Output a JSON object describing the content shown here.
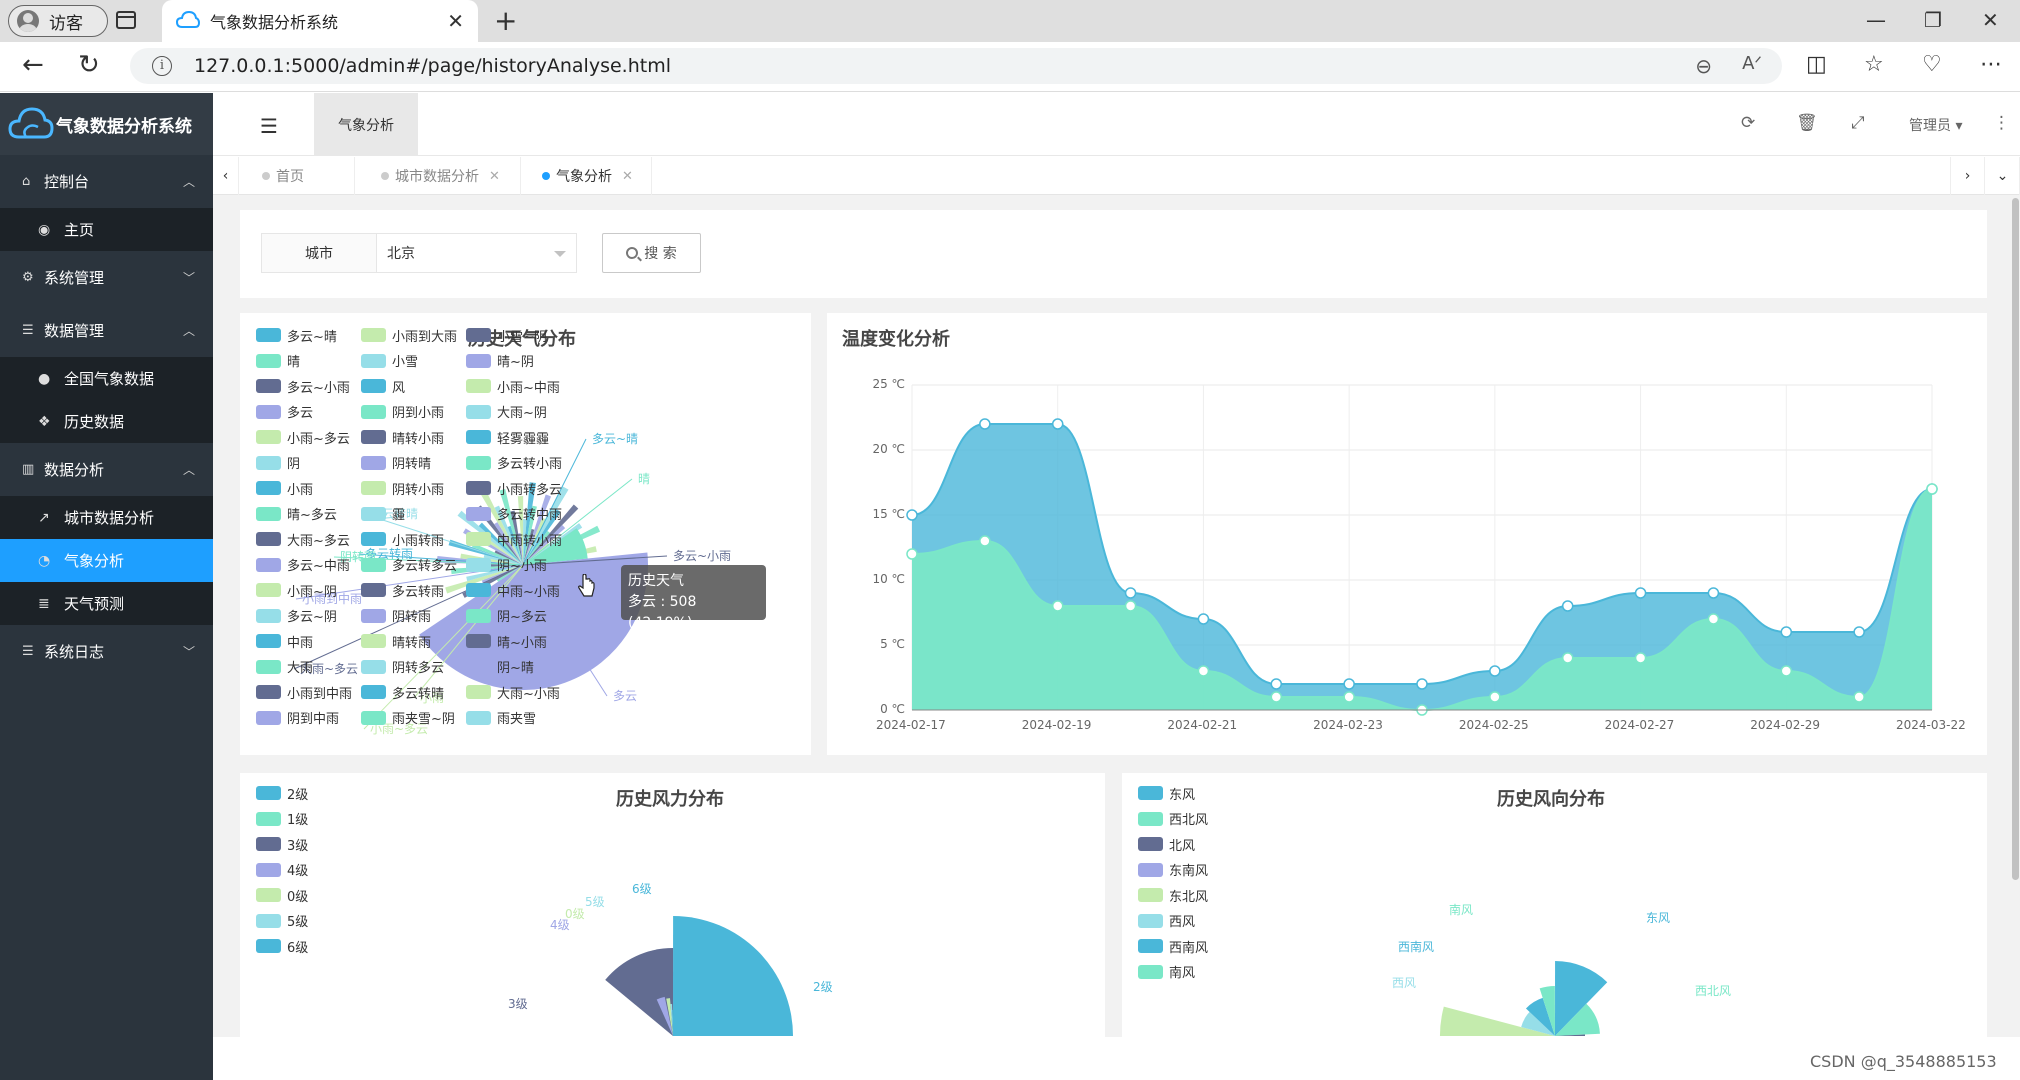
{
  "browser": {
    "profile": "访客",
    "tab_title": "气象数据分析系统",
    "url": "127.0.0.1:5000/admin#/page/historyAnalyse.html"
  },
  "sidebar": {
    "logo": "气象数据分析系统",
    "groups": [
      {
        "label": "控制台",
        "icon": "home-icon",
        "expanded": true,
        "items": [
          {
            "label": "主页",
            "icon": "dashboard-icon"
          }
        ]
      },
      {
        "label": "系统管理",
        "icon": "gears-icon",
        "expanded": false,
        "items": []
      },
      {
        "label": "数据管理",
        "icon": "list-icon",
        "expanded": true,
        "items": [
          {
            "label": "全国气象数据",
            "icon": "globe-icon"
          },
          {
            "label": "历史数据",
            "icon": "cubes-icon"
          }
        ]
      },
      {
        "label": "数据分析",
        "icon": "bar-chart-icon",
        "expanded": true,
        "items": [
          {
            "label": "城市数据分析",
            "icon": "line-chart-icon"
          },
          {
            "label": "气象分析",
            "icon": "pie-chart-icon",
            "active": true
          },
          {
            "label": "天气预测",
            "icon": "database-icon"
          }
        ]
      },
      {
        "label": "系统日志",
        "icon": "list-icon",
        "expanded": false,
        "items": []
      }
    ]
  },
  "topbar": {
    "active_tab": "气象分析",
    "user": "管理员"
  },
  "page_tabs": [
    {
      "label": "首页",
      "closable": false
    },
    {
      "label": "城市数据分析",
      "closable": true
    },
    {
      "label": "气象分析",
      "closable": true,
      "current": true
    }
  ],
  "search": {
    "label": "城市",
    "value": "北京",
    "button": "搜 索"
  },
  "watermark": "CSDN @q_3548885153",
  "colors": {
    "c1": "#4ab7d9",
    "c2": "#7ae7c7",
    "c3": "#626c91",
    "c4": "#a0a7e6",
    "c5": "#c4ebad",
    "c6": "#96dee8",
    "accent": "#1e9fff"
  },
  "chart_data": [
    {
      "type": "pie",
      "title": "历史天气分布",
      "series_name": "历史天气",
      "legend_position": "left",
      "legend": [
        "多云~晴",
        "晴",
        "多云~小雨",
        "多云",
        "小雨~多云",
        "阴",
        "小雨",
        "晴~多云",
        "大雨~多云",
        "多云~中雨",
        "小雨~阴",
        "多云~阴",
        "中雨",
        "大雨",
        "小雨到中雨",
        "阴到中雨",
        "小雨到大雨",
        "小雪",
        "风",
        "阴到小雨",
        "晴转小雨",
        "阴转晴",
        "阴转小雨",
        "霾",
        "小雨转雨",
        "多云转多云",
        "多云转雨",
        "阴转雨",
        "晴转雨",
        "阴转多云",
        "多云转晴",
        "雨夹雪~阴",
        "小雪~阴",
        "晴~阴",
        "小雨~中雨",
        "大雨~阴",
        "轻雾霾霾",
        "多云转小雨",
        "小雨转多云",
        "多云转中雨",
        "中雨转小雨",
        "阴~小雨",
        "中雨~小雨",
        "阴~多云",
        "晴~小雨",
        "阴~晴",
        "大雨~小雨",
        "雨夹雪"
      ],
      "tooltip": {
        "name": "多云",
        "value": 508,
        "percent": "42.19%"
      },
      "slice_labels": [
        "多云~晴",
        "晴",
        "多云~小雨",
        "多云",
        "小雨",
        "多云转晴",
        "多云转雨",
        "阴转雨",
        "大雨~多云",
        "小雨到中雨",
        "小雨~多云"
      ]
    },
    {
      "type": "area",
      "title": "温度变化分析",
      "x": [
        "2024-02-17",
        "2024-02-18",
        "2024-02-19",
        "2024-02-20",
        "2024-02-21",
        "2024-02-22",
        "2024-02-23",
        "2024-02-24",
        "2024-02-25",
        "2024-02-26",
        "2024-02-27",
        "2024-02-28",
        "2024-02-29",
        "2024-03-01",
        "2024-03-22"
      ],
      "x_tick_labels": [
        "2024-02-17",
        "2024-02-19",
        "2024-02-21",
        "2024-02-23",
        "2024-02-25",
        "2024-02-27",
        "2024-02-29",
        "2024-03-22"
      ],
      "series": [
        {
          "name": "",
          "values": [
            15,
            22,
            22,
            9,
            7,
            2,
            2,
            2,
            3,
            8,
            9,
            9,
            6,
            6,
            17
          ]
        },
        {
          "name": "",
          "values": [
            12,
            13,
            8,
            8,
            3,
            1,
            1,
            0,
            1,
            4,
            4,
            7,
            3,
            1,
            17
          ]
        }
      ],
      "y_ticks": [
        "0 ℃",
        "5 ℃",
        "10 ℃",
        "15 ℃",
        "20 ℃",
        "25 ℃"
      ],
      "ylim": [
        0,
        25
      ],
      "grid": true
    },
    {
      "type": "pie",
      "title": "历史风力分布",
      "legend_position": "left",
      "legend": [
        "2级",
        "1级",
        "3级",
        "4级",
        "0级",
        "5级",
        "6级"
      ],
      "slice_labels": [
        "2级",
        "3级",
        "4级",
        "0级",
        "5级",
        "6级"
      ]
    },
    {
      "type": "pie",
      "title": "历史风向分布",
      "legend_position": "left",
      "legend": [
        "东风",
        "西北风",
        "北风",
        "东南风",
        "东北风",
        "西风",
        "西南风",
        "南风"
      ],
      "slice_labels": [
        "东风",
        "西北风",
        "南风",
        "西南风",
        "西风"
      ]
    }
  ]
}
